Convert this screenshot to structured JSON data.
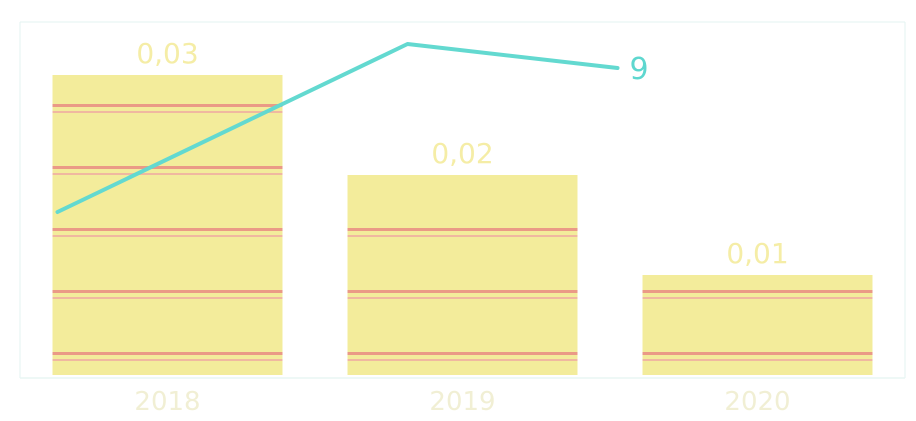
{
  "chart_data": {
    "type": "bar",
    "title": "",
    "categories": [
      "2018",
      "2019",
      "2020"
    ],
    "series": [
      {
        "type": "bar",
        "values": [
          0.03,
          0.02,
          0.01
        ],
        "value_labels": [
          "0,03",
          "0,02",
          "0,01"
        ],
        "fill_color": "#f3ec9b",
        "stripe_color": "#ea9a86"
      },
      {
        "type": "line",
        "values": [
          null,
          null,
          9
        ],
        "value_labels": [
          "",
          "",
          "9"
        ],
        "color": "#63d9d0"
      }
    ],
    "grid": false,
    "legend": "none"
  }
}
